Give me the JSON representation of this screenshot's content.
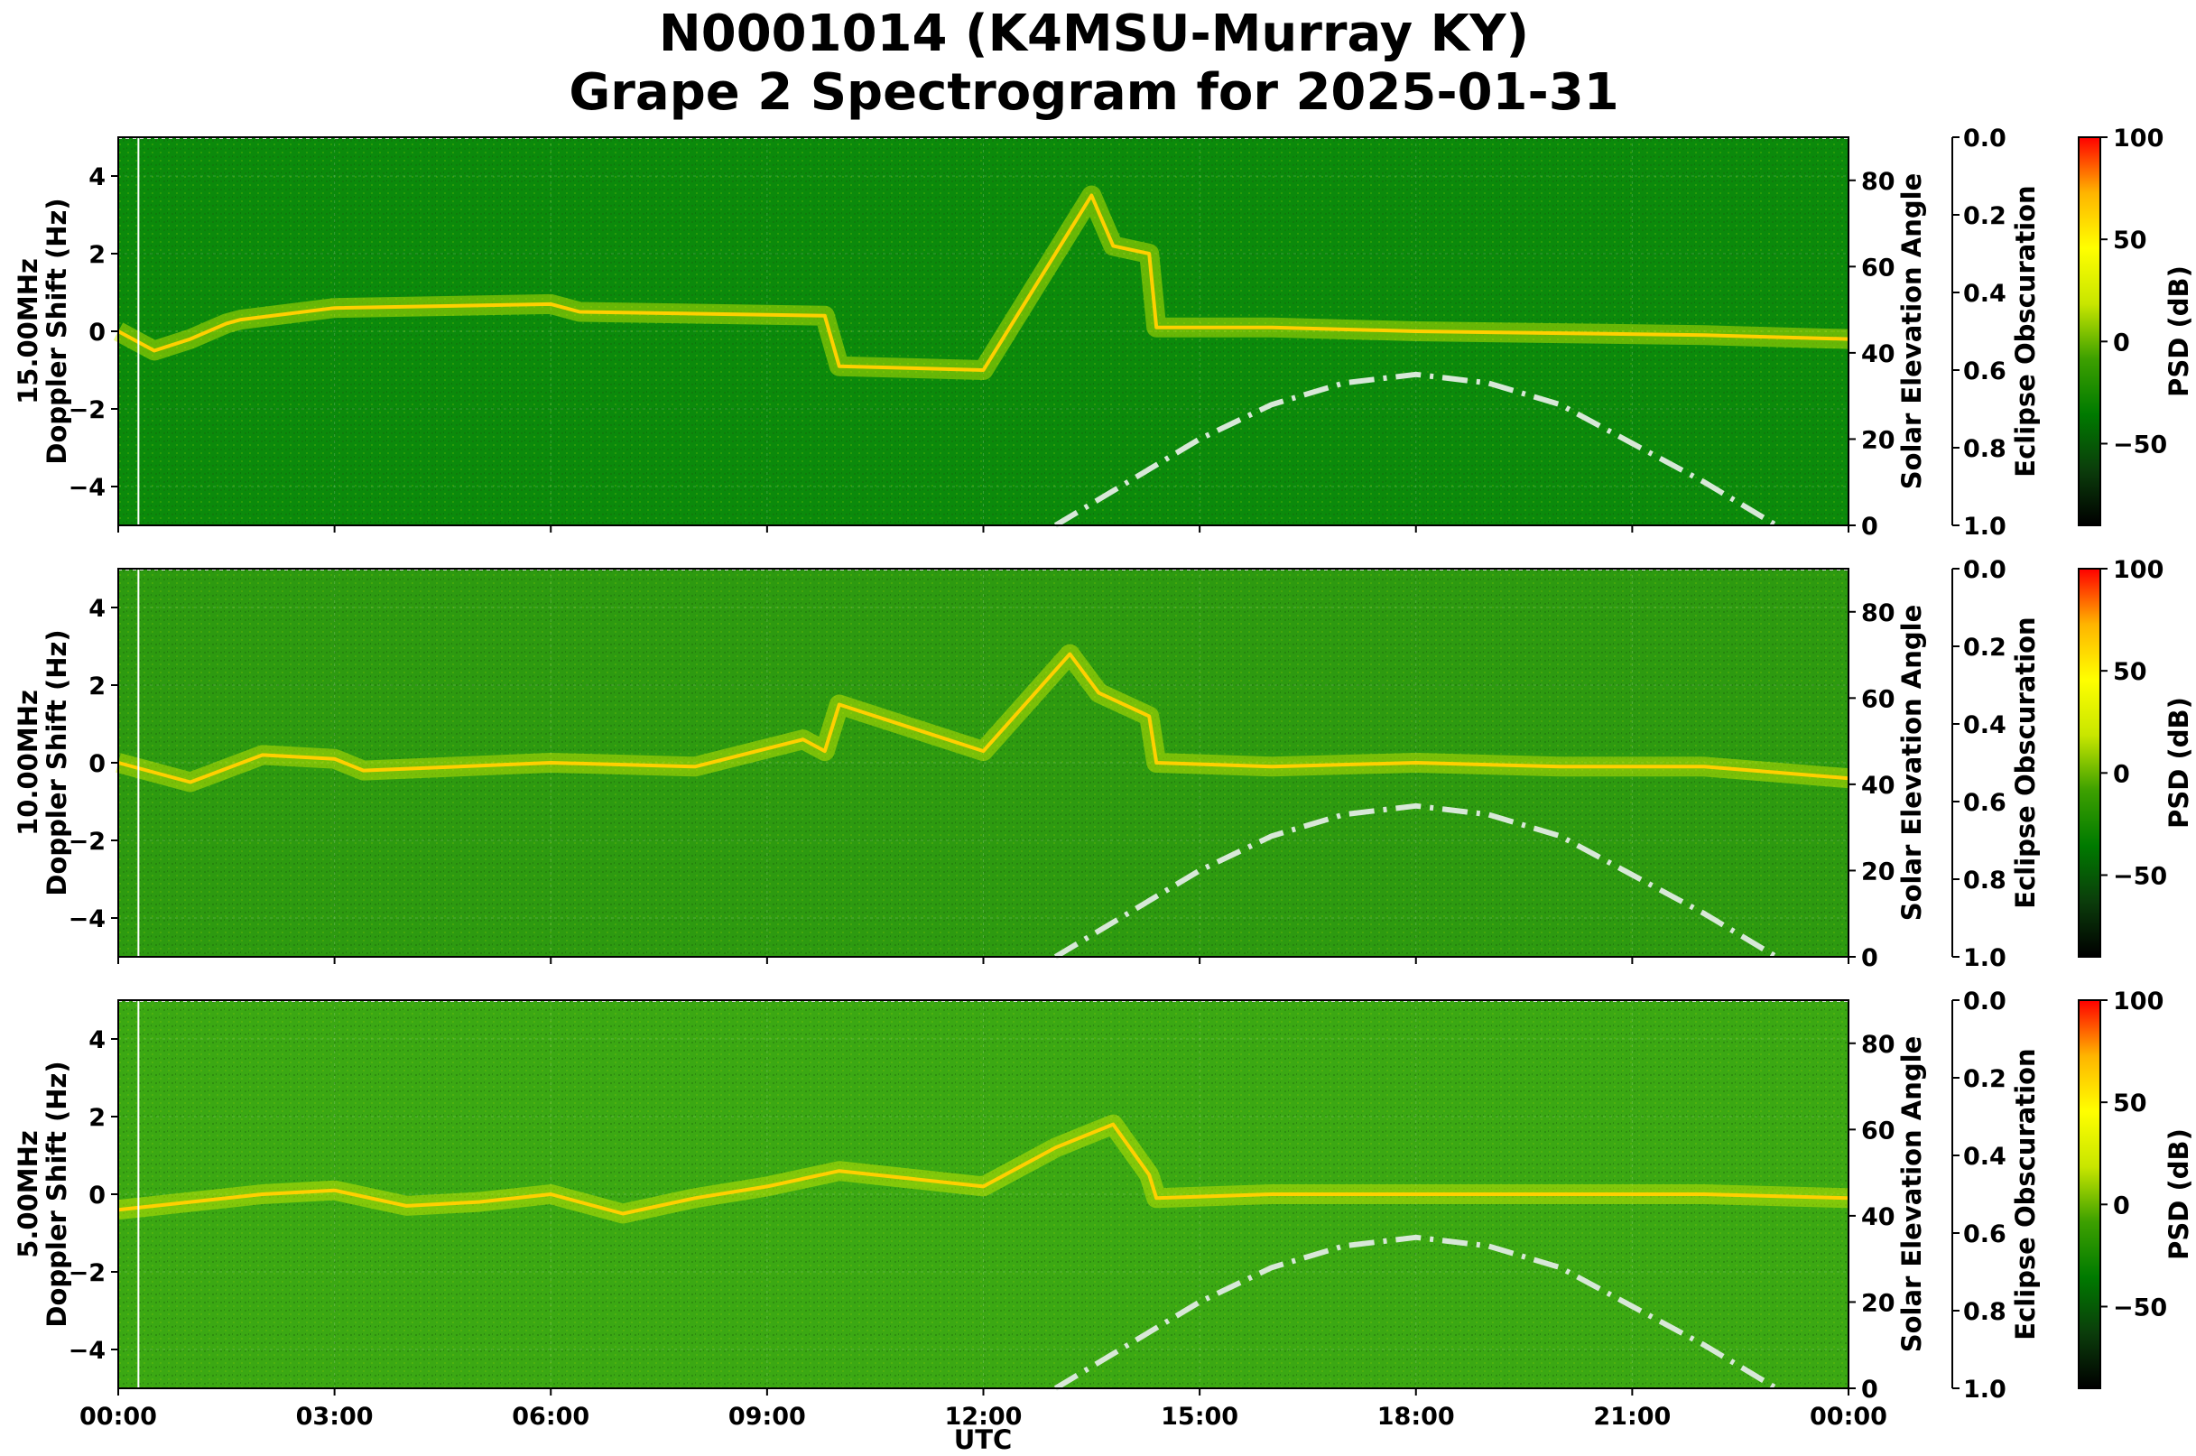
{
  "title": {
    "line1": "N0001014 (K4MSU-Murray KY)",
    "line2": "Grape 2 Spectrogram for 2025-01-31"
  },
  "chart_data": {
    "type": "heatmap",
    "shared_x": {
      "label": "UTC",
      "range_hours": [
        0,
        24
      ],
      "tick_values": [
        0,
        3,
        6,
        9,
        12,
        15,
        18,
        21,
        24
      ],
      "tick_labels": [
        "00:00",
        "03:00",
        "06:00",
        "09:00",
        "12:00",
        "15:00",
        "18:00",
        "21:00",
        "00:00"
      ]
    },
    "y_left": {
      "range": [
        -5,
        5
      ],
      "tick_values": [
        4,
        2,
        0,
        -2,
        -4
      ],
      "tick_labels": [
        "4",
        "2",
        "0",
        "−2",
        "−4"
      ]
    },
    "y_right": {
      "label": "Solar Elevation Angle",
      "range": [
        0,
        90
      ],
      "tick_values": [
        0,
        20,
        40,
        60,
        80
      ],
      "tick_labels": [
        "0",
        "20",
        "40",
        "60",
        "80"
      ]
    },
    "eclipse_axis": {
      "label": "Eclipse Obscuration",
      "range": [
        0.0,
        1.0
      ],
      "inverted": true,
      "tick_values": [
        0.0,
        0.2,
        0.4,
        0.6,
        0.8,
        1.0
      ],
      "tick_labels": [
        "0.0",
        "0.2",
        "0.4",
        "0.6",
        "0.8",
        "1.0"
      ]
    },
    "colorbar": {
      "label": "PSD (dB)",
      "range": [
        -90,
        100
      ],
      "tick_values": [
        100,
        50,
        0,
        -50
      ],
      "tick_labels": [
        "100",
        "50",
        "0",
        "−50"
      ],
      "colors": [
        "#000000",
        "#0b3d0b",
        "#007a00",
        "#3da000",
        "#c8e600",
        "#ffff00",
        "#ffb400",
        "#ff0000"
      ]
    },
    "solar_elevation_curve": {
      "style": "dash-dot",
      "color": "#d8e8d8",
      "x_hours": [
        13.0,
        14.0,
        15.0,
        16.0,
        17.0,
        18.0,
        19.0,
        20.0,
        21.0,
        22.0,
        23.0
      ],
      "y_degrees": [
        0,
        10,
        20,
        28,
        33,
        35,
        33,
        28,
        19,
        10,
        0
      ]
    },
    "panels": [
      {
        "ylabel": "15.00MHz\nDoppler Shift (Hz)",
        "background": "#0b8a0b",
        "trace_x": [
          0,
          0.5,
          1,
          1.5,
          1.7,
          3,
          6,
          6.4,
          9.8,
          10,
          12,
          13.5,
          13.8,
          14.3,
          14.4,
          16,
          18,
          20,
          22,
          24
        ],
        "trace_y": [
          0,
          -0.5,
          -0.2,
          0.2,
          0.3,
          0.6,
          0.7,
          0.5,
          0.4,
          -0.9,
          -1.0,
          3.5,
          2.2,
          2.0,
          0.1,
          0.1,
          0,
          -0.05,
          -0.1,
          -0.2
        ]
      },
      {
        "ylabel": "10.00MHz\nDoppler Shift (Hz)",
        "background": "#2d9a10",
        "trace_x": [
          0,
          1,
          2,
          3,
          3.4,
          6,
          8,
          9.5,
          9.8,
          10,
          11,
          12,
          13.2,
          13.6,
          14.3,
          14.4,
          16,
          18,
          20,
          22,
          24
        ],
        "trace_y": [
          0,
          -0.5,
          0.2,
          0.1,
          -0.2,
          0,
          -0.1,
          0.6,
          0.3,
          1.5,
          0.9,
          0.3,
          2.8,
          1.8,
          1.2,
          0,
          -0.1,
          0,
          -0.1,
          -0.1,
          -0.4
        ]
      },
      {
        "ylabel": "5.00MHz\nDoppler Shift (Hz)",
        "background": "#3ba813",
        "trace_x": [
          0,
          1,
          2,
          3,
          4,
          5,
          6,
          7,
          8,
          9,
          10,
          11,
          12,
          13,
          13.8,
          14.3,
          14.4,
          16,
          18,
          20,
          22,
          24
        ],
        "trace_y": [
          -0.4,
          -0.2,
          0,
          0.1,
          -0.3,
          -0.2,
          0,
          -0.5,
          -0.1,
          0.2,
          0.6,
          0.4,
          0.2,
          1.2,
          1.8,
          0.5,
          -0.1,
          0,
          0,
          0,
          0,
          -0.1
        ]
      }
    ]
  }
}
